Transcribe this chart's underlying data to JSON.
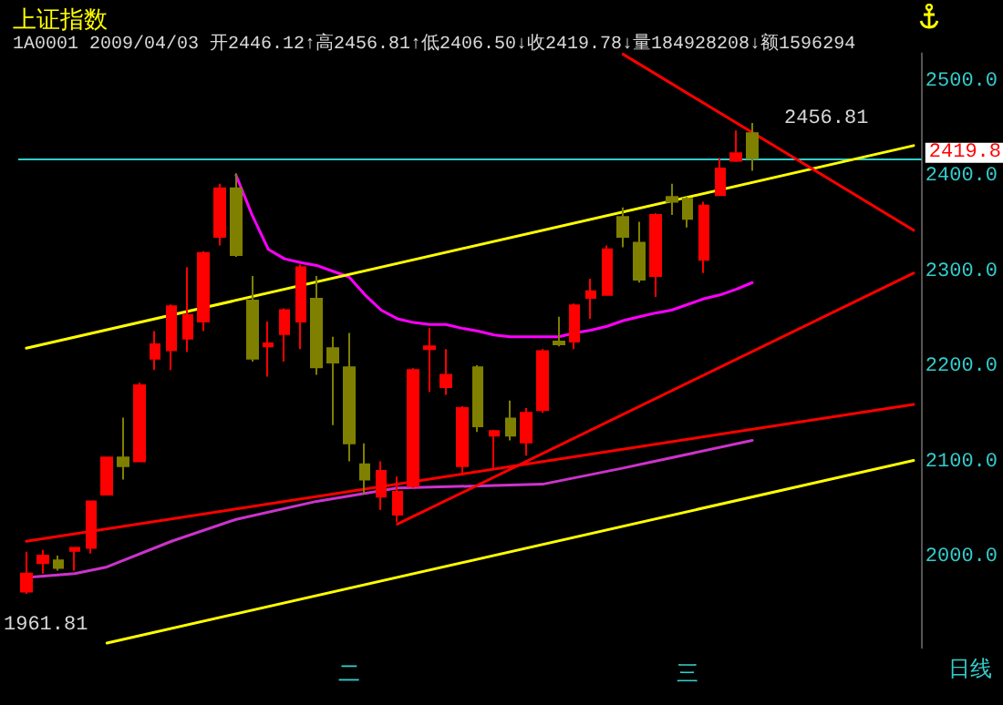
{
  "chart_data": {
    "type": "candlestick",
    "title": "上证指数",
    "subtitle": "1A0001 2009/04/03 开2446.12↑高2456.81↑低2406.50↓收2419.78↓量184928208↓额1596294",
    "categories": [
      null,
      null,
      null,
      null,
      null,
      null,
      null,
      null,
      null,
      null,
      null,
      null,
      null,
      null,
      null,
      null,
      null,
      null,
      null,
      null,
      "二",
      null,
      null,
      null,
      null,
      null,
      null,
      null,
      null,
      null,
      null,
      null,
      null,
      null,
      null,
      null,
      null,
      null,
      null,
      null,
      null,
      "三",
      null,
      null,
      null,
      null,
      null,
      null,
      null,
      null,
      null,
      null,
      null,
      null,
      null,
      null
    ],
    "ohlc": [
      [
        1964,
        2006,
        1961.81,
        1983
      ],
      [
        1994,
        2008,
        1983,
        2002
      ],
      [
        1997,
        2002,
        1986,
        1989
      ],
      [
        2007,
        2010,
        1986,
        2010
      ],
      [
        2010,
        2059,
        2004,
        2059
      ],
      [
        2066,
        2105,
        2066,
        2105
      ],
      [
        2105,
        2147,
        2082,
        2096
      ],
      [
        2101,
        2184,
        2101,
        2181
      ],
      [
        2209,
        2238,
        2197,
        2224
      ],
      [
        2218,
        2266,
        2197,
        2264
      ],
      [
        2230,
        2305,
        2216,
        2255
      ],
      [
        2248,
        2322,
        2238,
        2320
      ],
      [
        2337,
        2393,
        2328,
        2388
      ],
      [
        2388,
        2404,
        2316,
        2318
      ],
      [
        2270,
        2296,
        2206,
        2209
      ],
      [
        2222,
        2248,
        2190,
        2225
      ],
      [
        2235,
        2262,
        2206,
        2260
      ],
      [
        2248,
        2308,
        2219,
        2305
      ],
      [
        2272,
        2296,
        2192,
        2200
      ],
      [
        2220,
        2232,
        2139,
        2205
      ],
      [
        2200,
        2236,
        2101,
        2120
      ],
      [
        2098,
        2120,
        2066,
        2082
      ],
      [
        2064,
        2101,
        2050,
        2091
      ],
      [
        2045,
        2085,
        2037,
        2069
      ],
      [
        2075,
        2199,
        2073,
        2197
      ],
      [
        2219,
        2241,
        2174,
        2222
      ],
      [
        2179,
        2219,
        2171,
        2192
      ],
      [
        2096,
        2159,
        2088,
        2157
      ],
      [
        2200,
        2202,
        2132,
        2138
      ],
      [
        2128,
        2134,
        2094,
        2133
      ],
      [
        2146,
        2165,
        2123,
        2128
      ],
      [
        2121,
        2157,
        2107,
        2152
      ],
      [
        2155,
        2219,
        2152,
        2217
      ],
      [
        2227,
        2253,
        2222,
        2224
      ],
      [
        2227,
        2267,
        2219,
        2265
      ],
      [
        2273,
        2293,
        2251,
        2280
      ],
      [
        2276,
        2328,
        2276,
        2324
      ],
      [
        2358,
        2368,
        2326,
        2337
      ],
      [
        2331,
        2353,
        2289,
        2292
      ],
      [
        2296,
        2362,
        2274,
        2360
      ],
      [
        2379,
        2393,
        2360,
        2374
      ],
      [
        2377,
        2379,
        2347,
        2356
      ],
      [
        2313,
        2374,
        2299,
        2370
      ],
      [
        2381,
        2420,
        2380,
        2409
      ],
      [
        2417,
        2449,
        2416,
        2425
      ],
      [
        2446.12,
        2456.81,
        2406.5,
        2419.78
      ],
      null,
      null,
      null,
      null,
      null,
      null,
      null,
      null,
      null,
      null
    ],
    "colors": [
      "#ff0000",
      "#ff0000",
      "#808000",
      "#ff0000",
      "#ff0000",
      "#ff0000",
      "#808000",
      "#ff0000",
      "#ff0000",
      "#ff0000",
      "#ff0000",
      "#ff0000",
      "#ff0000",
      "#808000",
      "#808000",
      "#ff0000",
      "#ff0000",
      "#ff0000",
      "#808000",
      "#808000",
      "#808000",
      "#808000",
      "#ff0000",
      "#ff0000",
      "#ff0000",
      "#ff0000",
      "#ff0000",
      "#ff0000",
      "#808000",
      "#ff0000",
      "#808000",
      "#ff0000",
      "#ff0000",
      "#808000",
      "#ff0000",
      "#ff0000",
      "#ff0000",
      "#808000",
      "#808000",
      "#ff0000",
      "#808000",
      "#808000",
      "#ff0000",
      "#ff0000",
      "#ff0000",
      "#808000",
      null,
      null,
      null,
      null,
      null,
      null,
      null,
      null,
      null,
      null
    ],
    "series": [
      {
        "type": "line",
        "color": "#ff00ff",
        "values": [
          null,
          null,
          null,
          null,
          null,
          null,
          null,
          null,
          null,
          null,
          null,
          null,
          null,
          2402,
          2360,
          2324,
          2314,
          2310,
          2307,
          2301,
          2295,
          2276,
          2260,
          2251,
          2247,
          2245,
          2245,
          2241,
          2238,
          2234,
          2232,
          2232,
          2232,
          2232,
          2236,
          2239,
          2243,
          2249,
          2253,
          2257,
          2260,
          2266,
          2272,
          2276,
          2282,
          2289,
          null,
          null,
          null,
          null,
          null,
          null,
          null,
          null,
          null,
          null
        ]
      },
      {
        "type": "line",
        "color": "#cc33cc",
        "values": [
          1979,
          null,
          null,
          1983,
          null,
          1990,
          null,
          null,
          null,
          2017,
          null,
          null,
          null,
          2040,
          null,
          null,
          null,
          null,
          2059,
          null,
          null,
          null,
          null,
          2073,
          null,
          null,
          null,
          null,
          null,
          null,
          null,
          null,
          2077,
          null,
          null,
          null,
          null,
          2094,
          null,
          null,
          null,
          null,
          null,
          null,
          null,
          2123,
          null,
          null,
          null,
          null,
          null,
          null,
          null,
          null,
          null,
          null
        ]
      },
      {
        "type": "line",
        "color": "#ffff00",
        "values": [
          2220,
          null,
          null,
          null,
          null,
          null,
          null,
          null,
          null,
          null,
          null,
          null,
          null,
          null,
          null,
          null,
          null,
          null,
          null,
          null,
          null,
          null,
          null,
          null,
          null,
          null,
          null,
          null,
          null,
          null,
          null,
          null,
          null,
          null,
          null,
          null,
          null,
          null,
          null,
          null,
          null,
          null,
          null,
          null,
          null,
          null,
          null,
          null,
          null,
          null,
          null,
          null,
          null,
          null,
          null,
          2433
        ]
      },
      {
        "type": "line",
        "color": "#ffff00",
        "values": [
          null,
          null,
          null,
          null,
          null,
          1910,
          null,
          null,
          null,
          null,
          null,
          null,
          null,
          null,
          null,
          null,
          null,
          null,
          null,
          null,
          null,
          null,
          null,
          null,
          null,
          null,
          null,
          null,
          null,
          null,
          null,
          null,
          null,
          null,
          null,
          null,
          null,
          null,
          null,
          null,
          null,
          null,
          null,
          null,
          null,
          null,
          null,
          null,
          null,
          null,
          null,
          null,
          null,
          null,
          null,
          2102
        ]
      },
      {
        "type": "line",
        "color": "#ff0000",
        "values": [
          2017,
          null,
          null,
          null,
          null,
          null,
          null,
          null,
          null,
          null,
          null,
          null,
          null,
          null,
          null,
          null,
          null,
          null,
          null,
          null,
          null,
          null,
          null,
          null,
          null,
          null,
          null,
          null,
          null,
          null,
          null,
          null,
          null,
          null,
          null,
          null,
          null,
          null,
          null,
          null,
          null,
          null,
          null,
          null,
          null,
          null,
          null,
          null,
          null,
          null,
          null,
          null,
          null,
          null,
          null,
          2161
        ]
      },
      {
        "type": "line",
        "color": "#ff0000",
        "values": [
          null,
          null,
          null,
          null,
          null,
          null,
          null,
          null,
          null,
          null,
          null,
          null,
          null,
          null,
          null,
          null,
          null,
          null,
          null,
          null,
          null,
          null,
          null,
          2035,
          null,
          null,
          null,
          null,
          null,
          null,
          null,
          null,
          null,
          null,
          null,
          null,
          null,
          null,
          null,
          null,
          null,
          null,
          null,
          null,
          null,
          null,
          null,
          null,
          null,
          null,
          null,
          null,
          null,
          null,
          null,
          2299
        ]
      },
      {
        "type": "line",
        "color": "#ff0000",
        "values": [
          null,
          null,
          null,
          null,
          null,
          null,
          null,
          null,
          null,
          null,
          null,
          null,
          null,
          null,
          null,
          null,
          null,
          null,
          null,
          null,
          null,
          null,
          null,
          null,
          null,
          null,
          null,
          null,
          null,
          null,
          null,
          null,
          null,
          null,
          null,
          null,
          null,
          2529,
          null,
          null,
          null,
          null,
          null,
          null,
          null,
          null,
          null,
          null,
          null,
          null,
          null,
          null,
          null,
          null,
          null,
          2344
        ]
      }
    ],
    "ylim": [
      1905,
      2530
    ],
    "yticks": [
      {
        "value": 2000,
        "label": "2000.0"
      },
      {
        "value": 2100,
        "label": "2100.0"
      },
      {
        "value": 2200,
        "label": "2200.0"
      },
      {
        "value": 2300,
        "label": "2300.0"
      },
      {
        "value": 2400,
        "label": "2400.0"
      },
      {
        "value": 2500,
        "label": "2500.0"
      }
    ],
    "ref_lines": [
      {
        "axis": "y",
        "value": 2419.78,
        "label": "2419.8",
        "color": "#33cccc"
      }
    ],
    "annotations": [
      "日线",
      "2456.81",
      "1961.81"
    ],
    "grid": false,
    "marker": "none",
    "line_style": "solid"
  }
}
